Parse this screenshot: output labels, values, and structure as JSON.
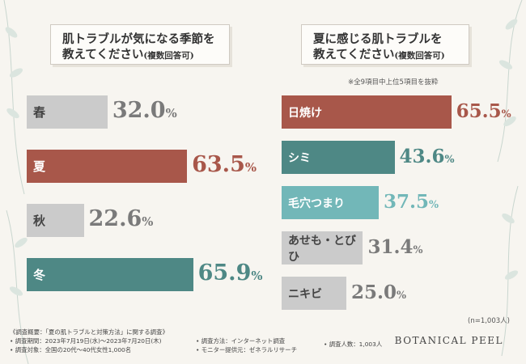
{
  "colors": {
    "background": "#f7f5f0",
    "gray": "#cbcbcb",
    "red": "#a8574a",
    "teal": "#4e8885",
    "aqua": "#72b7b8",
    "gray_text": "#7a7a7a"
  },
  "left": {
    "question_main": "肌トラブルが気になる季節を",
    "question_line2": "教えてください",
    "question_note": "(複数回答可)"
  },
  "right": {
    "question_main": "夏に感じる肌トラブルを",
    "question_line2": "教えてください",
    "question_note": "(複数回答可)",
    "subnote": "※全9項目中上位5項目を抜粋",
    "sample": "(n=1,003人)"
  },
  "chart_data": [
    {
      "type": "bar",
      "orientation": "horizontal",
      "categories": [
        "春",
        "夏",
        "秋",
        "冬"
      ],
      "values": [
        32.0,
        63.5,
        22.6,
        65.9
      ],
      "value_labels": [
        "32.0",
        "63.5",
        "22.6",
        "65.9"
      ],
      "unit": "%",
      "bar_colors": [
        "#cbcbcb",
        "#a8574a",
        "#cbcbcb",
        "#4e8885"
      ],
      "label_colors": [
        "#7a7a7a",
        "#a8574a",
        "#7a7a7a",
        "#4e8885"
      ]
    },
    {
      "type": "bar",
      "orientation": "horizontal",
      "categories": [
        "日焼け",
        "シミ",
        "毛穴つまり",
        "あせも・とびひ",
        "ニキビ"
      ],
      "values": [
        65.5,
        43.6,
        37.5,
        31.4,
        25.0
      ],
      "value_labels": [
        "65.5",
        "43.6",
        "37.5",
        "31.4",
        "25.0"
      ],
      "unit": "%",
      "bar_colors": [
        "#a8574a",
        "#4e8885",
        "#72b7b8",
        "#cbcbcb",
        "#cbcbcb"
      ],
      "label_colors": [
        "#a8574a",
        "#4e8885",
        "#72b7b8",
        "#7a7a7a",
        "#7a7a7a"
      ]
    }
  ],
  "footer": {
    "title": "《調査概要：「夏の肌トラブルと対策方法」に関する調査》",
    "period": "• 調査期間：2023年7月19日(水)〜2023年7月20日(木)",
    "target": "• 調査対象：全国の20代〜40代女性1,000名",
    "method": "• 調査方法：インターネット調査",
    "provider": "• モニター提供元：ゼネラルリサーチ",
    "count": "• 調査人数：1,003人"
  },
  "brand": "BOTANICAL PEEL"
}
